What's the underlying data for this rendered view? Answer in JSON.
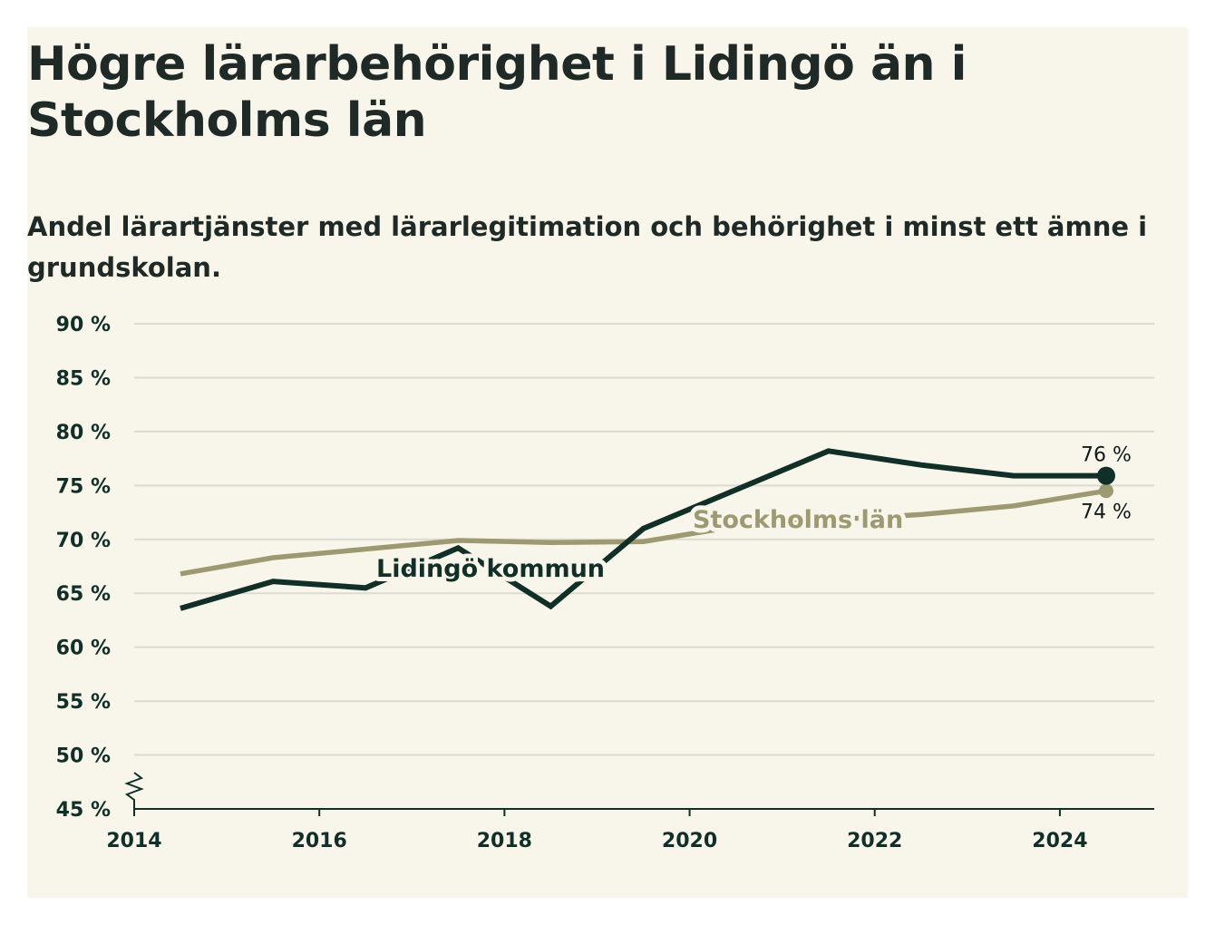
{
  "title": "Högre lärarbehörighet i Lidingö än i Stockholms län",
  "subtitle": "Andel lärartjänster med lärarlegitimation och behörighet i minst ett ämne i grundskolan.",
  "colors": {
    "background": "#f8f6ea",
    "lidingo": "#0f2f27",
    "stockholm": "#9d9a72",
    "grid": "#dcdbd2"
  },
  "chart_data": {
    "type": "line",
    "title": "Högre lärarbehörighet i Lidingö än i Stockholms län",
    "subtitle": "Andel lärartjänster med lärarlegitimation och behörighet i minst ett ämne i grundskolan.",
    "ylim": [
      45,
      90
    ],
    "xlim": [
      2014,
      2025
    ],
    "y_ticks": [
      45,
      50,
      55,
      60,
      65,
      70,
      75,
      80,
      85,
      90
    ],
    "y_tick_labels": [
      "45 %",
      "50 %",
      "55 %",
      "60 %",
      "65 %",
      "70 %",
      "75 %",
      "80 %",
      "85 %",
      "90 %"
    ],
    "x_ticks": [
      2014,
      2016,
      2018,
      2020,
      2022,
      2024
    ],
    "x_tick_labels": [
      "2014",
      "2016",
      "2018",
      "2020",
      "2022",
      "2024"
    ],
    "grid": true,
    "y_axis_break": true,
    "series": [
      {
        "name": "Lidingö kommun",
        "color": "#0f2f27",
        "x": [
          2014.5,
          2015.5,
          2016.5,
          2017.5,
          2018.5,
          2019.5,
          2020.5,
          2021.5,
          2022.5,
          2023.5,
          2024.5
        ],
        "y": [
          63.6,
          66.1,
          65.5,
          69.2,
          63.8,
          71.0,
          74.6,
          78.2,
          76.9,
          75.9,
          75.9
        ],
        "end_label": "76 %"
      },
      {
        "name": "Stockholms län",
        "color": "#9d9a72",
        "x": [
          2014.5,
          2015.5,
          2016.5,
          2017.5,
          2018.5,
          2019.5,
          2020.5,
          2021.5,
          2022.5,
          2023.5,
          2024.5
        ],
        "y": [
          66.8,
          68.3,
          69.1,
          69.9,
          69.7,
          69.8,
          71.2,
          71.8,
          72.3,
          73.1,
          74.5
        ],
        "end_label": "74 %"
      }
    ]
  }
}
